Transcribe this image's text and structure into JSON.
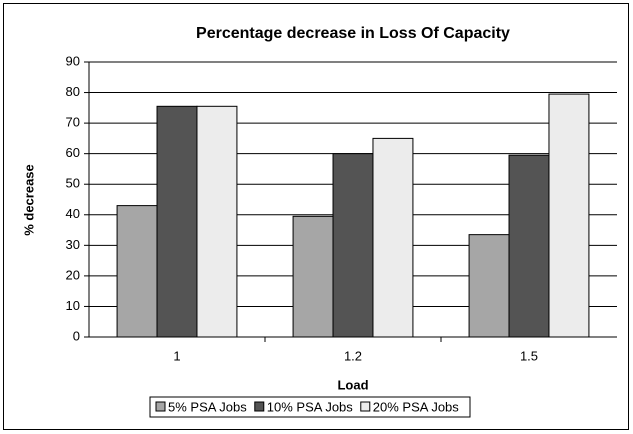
{
  "chart_data": {
    "type": "bar",
    "title": "Percentage decrease in Loss Of Capacity",
    "x_label": "Load",
    "y_label": "% decrease",
    "categories": [
      "1",
      "1.2",
      "1.5"
    ],
    "series": [
      {
        "name": "5% PSA Jobs",
        "color": "#a6a6a6",
        "values": [
          43,
          39.5,
          33.5
        ]
      },
      {
        "name": "10% PSA Jobs",
        "color": "#545454",
        "values": [
          75.5,
          60,
          59.5
        ]
      },
      {
        "name": "20% PSA Jobs",
        "color": "#ececec",
        "values": [
          75.5,
          65,
          79.5
        ]
      }
    ],
    "ylim": [
      0,
      90
    ],
    "yticks": [
      0,
      10,
      20,
      30,
      40,
      50,
      60,
      70,
      80,
      90
    ],
    "grid": true,
    "legend": "bottom"
  }
}
